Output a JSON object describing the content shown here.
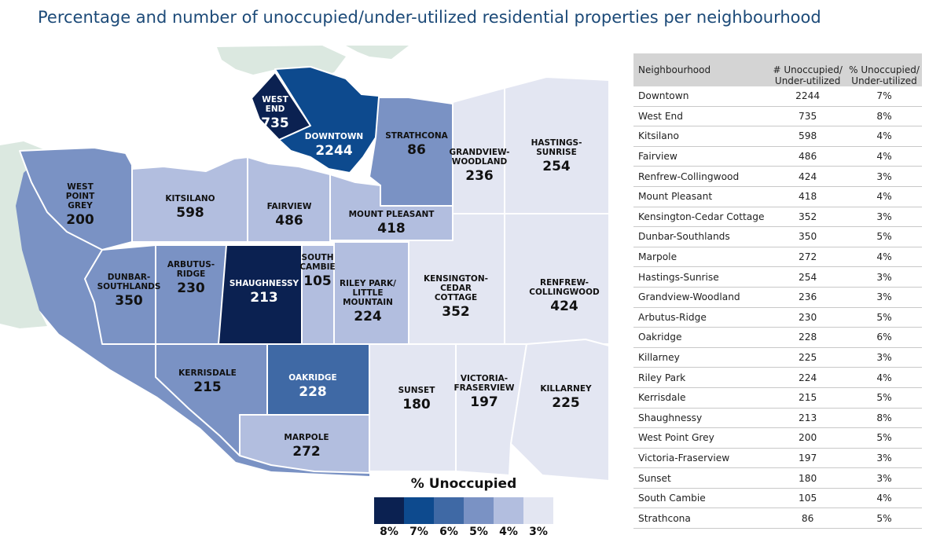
{
  "title": "Percentage and number of unoccupied/under-utilized residential properties per neighbourhood",
  "colors": {
    "8": "#0b2151",
    "7": "#0d4a8e",
    "6": "#3f69a5",
    "5": "#7a92c4",
    "4": "#b2bedf",
    "3": "#e3e6f2",
    "land": "#dbe8e0"
  },
  "neighbourhoods": {
    "westend": {
      "name": "WEST END",
      "value": "735",
      "pct": 8
    },
    "downtown": {
      "name": "DOWNTOWN",
      "value": "2244",
      "pct": 7
    },
    "strathcona": {
      "name": "STRATHCONA",
      "value": "86",
      "pct": 5
    },
    "grandview": {
      "name": "GRANDVIEW- WOODLAND",
      "value": "236",
      "pct": 3
    },
    "hastings": {
      "name": "HASTINGS- SUNRISE",
      "value": "254",
      "pct": 3
    },
    "westpointgrey": {
      "name": "WEST POINT GREY",
      "value": "200",
      "pct": 5
    },
    "kitsilano": {
      "name": "KITSILANO",
      "value": "598",
      "pct": 4
    },
    "fairview": {
      "name": "FAIRVIEW",
      "value": "486",
      "pct": 4
    },
    "mountpleasant": {
      "name": "MOUNT PLEASANT",
      "value": "418",
      "pct": 4
    },
    "dunbar": {
      "name": "DUNBAR- SOUTHLANDS",
      "value": "350",
      "pct": 5
    },
    "arbutus": {
      "name": "ARBUTUS- RIDGE",
      "value": "230",
      "pct": 5
    },
    "shaughnessy": {
      "name": "SHAUGHNESSY",
      "value": "213",
      "pct": 8
    },
    "southcambie": {
      "name": "SOUTH CAMBIE",
      "value": "105",
      "pct": 4
    },
    "rileypark": {
      "name": "RILEY PARK/ LITTLE MOUNTAIN",
      "value": "224",
      "pct": 4
    },
    "kensington": {
      "name": "KENSINGTON- CEDAR COTTAGE",
      "value": "352",
      "pct": 3
    },
    "renfrew": {
      "name": "RENFREW- COLLINGWOOD",
      "value": "424",
      "pct": 3
    },
    "kerrisdale": {
      "name": "KERRISDALE",
      "value": "215",
      "pct": 5
    },
    "oakridge": {
      "name": "OAKRIDGE",
      "value": "228",
      "pct": 6
    },
    "marpole": {
      "name": "MARPOLE",
      "value": "272",
      "pct": 4
    },
    "sunset": {
      "name": "SUNSET",
      "value": "180",
      "pct": 3
    },
    "victoria": {
      "name": "VICTORIA- FRASERVIEW",
      "value": "197",
      "pct": 3
    },
    "killarney": {
      "name": "KILLARNEY",
      "value": "225",
      "pct": 3
    }
  },
  "legend": {
    "title": "% Unoccupied",
    "items": [
      {
        "label": "8%",
        "color": "#0b2151"
      },
      {
        "label": "7%",
        "color": "#0d4a8e"
      },
      {
        "label": "6%",
        "color": "#3f69a5"
      },
      {
        "label": "5%",
        "color": "#7a92c4"
      },
      {
        "label": "4%",
        "color": "#b2bedf"
      },
      {
        "label": "3%",
        "color": "#e3e6f2"
      }
    ]
  },
  "table": {
    "headers": [
      "Neighbourhood",
      "# Unoccupied/ Under-utilized",
      "% Unoccupied/ Under-utilized"
    ],
    "rows": [
      [
        "Downtown",
        "2244",
        "7%"
      ],
      [
        "West End",
        "735",
        "8%"
      ],
      [
        "Kitsilano",
        "598",
        "4%"
      ],
      [
        "Fairview",
        "486",
        "4%"
      ],
      [
        "Renfrew-Collingwood",
        "424",
        "3%"
      ],
      [
        "Mount Pleasant",
        "418",
        "4%"
      ],
      [
        "Kensington-Cedar Cottage",
        "352",
        "3%"
      ],
      [
        "Dunbar-Southlands",
        "350",
        "5%"
      ],
      [
        "Marpole",
        "272",
        "4%"
      ],
      [
        "Hastings-Sunrise",
        "254",
        "3%"
      ],
      [
        "Grandview-Woodland",
        "236",
        "3%"
      ],
      [
        "Arbutus-Ridge",
        "230",
        "5%"
      ],
      [
        "Oakridge",
        "228",
        "6%"
      ],
      [
        "Killarney",
        "225",
        "3%"
      ],
      [
        "Riley Park",
        "224",
        "4%"
      ],
      [
        "Kerrisdale",
        "215",
        "5%"
      ],
      [
        "Shaughnessy",
        "213",
        "8%"
      ],
      [
        "West Point Grey",
        "200",
        "5%"
      ],
      [
        "Victoria-Fraserview",
        "197",
        "3%"
      ],
      [
        "Sunset",
        "180",
        "3%"
      ],
      [
        "South Cambie",
        "105",
        "4%"
      ],
      [
        "Strathcona",
        "86",
        "5%"
      ]
    ]
  }
}
